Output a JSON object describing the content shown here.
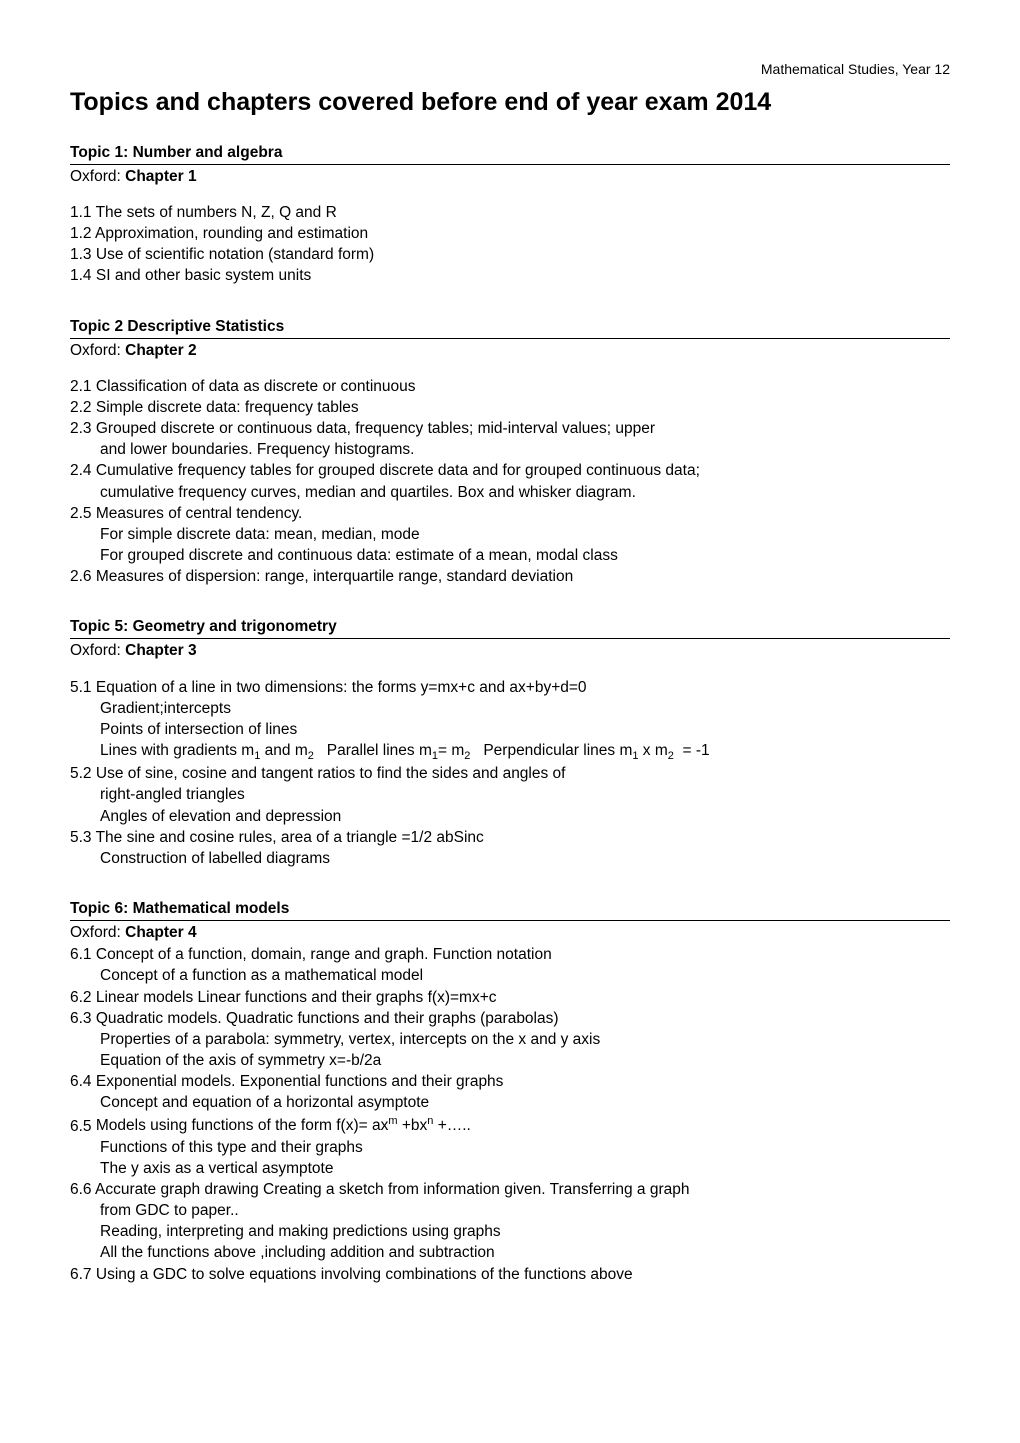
{
  "header": {
    "course": "Mathematical Studies, Year 12"
  },
  "title": "Topics and chapters covered before end of year exam 2014",
  "topics": [
    {
      "heading": "Topic 1: Number and algebra",
      "oxford_prefix": "Oxford: ",
      "oxford_chapter": "Chapter 1",
      "items": [
        {
          "n": "1.1",
          "text": "The sets of numbers N, Z, Q and R"
        },
        {
          "n": "1.2",
          "text": "Approximation, rounding and estimation"
        },
        {
          "n": "1.3",
          "text": "Use of scientific notation (standard form)"
        },
        {
          "n": "1.4",
          "text": "SI and other basic system units"
        }
      ]
    },
    {
      "heading": "Topic 2 Descriptive Statistics",
      "oxford_prefix": "Oxford: ",
      "oxford_chapter": "Chapter 2",
      "items": [
        {
          "n": "2.1",
          "text": "Classification of data as discrete or continuous"
        },
        {
          "n": "2.2",
          "text": "Simple discrete data: frequency tables"
        },
        {
          "n": "2.3",
          "text": "Grouped discrete or continuous data, frequency tables; mid-interval values; upper",
          "cont": [
            "and lower boundaries. Frequency histograms."
          ]
        },
        {
          "n": "2.4",
          "text": "Cumulative frequency tables for grouped discrete data and for grouped continuous data;",
          "cont": [
            "cumulative frequency curves, median and quartiles. Box and whisker diagram."
          ]
        },
        {
          "n": "2.5",
          "text": "Measures of central tendency.",
          "cont": [
            "For simple discrete data: mean, median, mode",
            "For grouped discrete and continuous data: estimate of a mean, modal class"
          ]
        },
        {
          "n": "2.6",
          "text": "Measures of dispersion: range, interquartile range, standard deviation"
        }
      ]
    },
    {
      "heading": "Topic 5: Geometry and trigonometry",
      "oxford_prefix": "Oxford: ",
      "oxford_chapter": "Chapter 3",
      "items": [
        {
          "n": "5.1",
          "text": "Equation of a line in two dimensions: the forms y=mx+c and ax+by+d=0",
          "cont": [
            "Gradient;intercepts",
            "Points of intersection of lines"
          ],
          "special_line": {
            "p1": "Lines with gradients m",
            "s1": "1",
            "p2": " and m",
            "s2": "2",
            "p3": "   Parallel lines m",
            "s3": "1",
            "p4": "= m",
            "s4": "2",
            "p5": "   Perpendicular lines m",
            "s5": "1",
            "p6": " x m",
            "s6": "2",
            "p7": "  = -1"
          }
        },
        {
          "n": "5.2",
          "text": "Use of sine, cosine and tangent ratios to find the sides and angles of",
          "cont": [
            "right-angled triangles",
            "Angles of elevation and depression"
          ]
        },
        {
          "n": "5.3",
          "text": "The sine and cosine rules, area of a triangle =1/2 abSinc",
          "cont": [
            "Construction of labelled diagrams"
          ]
        }
      ]
    },
    {
      "heading": "Topic 6: Mathematical models",
      "oxford_prefix": "Oxford: ",
      "oxford_chapter": "Chapter 4",
      "tight": true,
      "items": [
        {
          "n": "6.1",
          "text": "Concept of a function, domain, range and graph. Function notation",
          "cont": [
            "Concept of a function as a mathematical model"
          ]
        },
        {
          "n": "6.2",
          "text": "Linear models Linear functions and their graphs f(x)=mx+c"
        },
        {
          "n": "6.3",
          "text": "Quadratic models. Quadratic functions and their graphs (parabolas)",
          "cont": [
            "Properties of a parabola: symmetry, vertex, intercepts on the x and y axis",
            "Equation of the axis of symmetry x=-b/2a"
          ]
        },
        {
          "n": "6.4",
          "text": "Exponential models. Exponential functions and their graphs",
          "cont": [
            "Concept and equation of a horizontal asymptote"
          ]
        },
        {
          "n": "6.5",
          "special_first": {
            "p1": "Models using functions of the form f(x)= ax",
            "s1": "m",
            "p2": " +bx",
            "s2": "n",
            "p3": " +….."
          },
          "cont": [
            "Functions of this type and their graphs",
            "The y axis as a vertical asymptote"
          ]
        },
        {
          "n": "6.6",
          "text": "Accurate graph drawing Creating a sketch from information given. Transferring a graph",
          "cont": [
            "from GDC to paper..",
            "Reading, interpreting and making predictions using graphs",
            "All the functions above ,including addition and subtraction"
          ]
        },
        {
          "n": "6.7",
          "text": "Using a GDC to solve equations involving combinations of the functions above"
        }
      ]
    }
  ]
}
